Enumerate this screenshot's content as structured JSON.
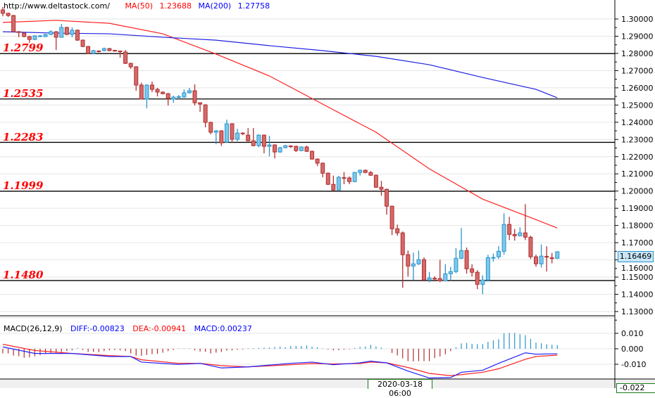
{
  "header": {
    "url": "http://www.deltastock.com/",
    "ma50_label": "MA(50)",
    "ma50_value": "1.23688",
    "ma200_label": "MA(200)",
    "ma200_value": "1.27758"
  },
  "macd_legend": {
    "title": "MACD(26,12,9)",
    "diff": "DIFF:-0.00823",
    "dea": "DEA:-0.00941",
    "macd": "MACD:0.00237"
  },
  "levels": [
    "1.2799",
    "1.2535",
    "1.2283",
    "1.1999",
    "1.1480"
  ],
  "current_price": "1.16469",
  "crosshair_time": "2020-03-18 06:00",
  "macd_axis_bottom_value": "-0.022",
  "colors": {
    "bull_fill": "#7ec8ea",
    "bull_stroke": "#2a95cc",
    "bear_fill": "#d46a6a",
    "bear_stroke": "#b03030",
    "ma50": "#ff2020",
    "ma200": "#2020e0",
    "level_label": "#ff0000",
    "diff": "#2020ff",
    "dea": "#ff2020"
  },
  "chart_data": [
    {
      "type": "candlestick",
      "ylim": [
        1.125,
        1.311
      ],
      "yticks": [
        "1.30000",
        "1.29000",
        "1.28000",
        "1.27000",
        "1.26000",
        "1.25000",
        "1.24000",
        "1.23000",
        "1.22000",
        "1.21000",
        "1.20000",
        "1.19000",
        "1.18000",
        "1.17000",
        "1.16000",
        "1.15000",
        "1.14000",
        "1.13000"
      ],
      "grid": true,
      "ohlc": [
        [
          1.3053,
          1.307,
          1.3016,
          1.3033
        ],
        [
          1.3033,
          1.3037,
          1.3012,
          1.302
        ],
        [
          1.302,
          1.3024,
          1.2922,
          1.2926
        ],
        [
          1.2926,
          1.293,
          1.2894,
          1.2922
        ],
        [
          1.2918,
          1.2922,
          1.2894,
          1.2898
        ],
        [
          1.2898,
          1.2902,
          1.2861,
          1.2881
        ],
        [
          1.2881,
          1.2906,
          1.2877,
          1.2902
        ],
        [
          1.2898,
          1.2906,
          1.2894,
          1.2902
        ],
        [
          1.2898,
          1.2914,
          1.2894,
          1.291
        ],
        [
          1.291,
          1.2935,
          1.2906,
          1.2926
        ],
        [
          1.2926,
          1.293,
          1.282,
          1.2894
        ],
        [
          1.2894,
          1.2971,
          1.289,
          1.2951
        ],
        [
          1.2951,
          1.2955,
          1.2906,
          1.291
        ],
        [
          1.291,
          1.2951,
          1.2894,
          1.2935
        ],
        [
          1.2935,
          1.2939,
          1.2873,
          1.2877
        ],
        [
          1.2877,
          1.2881,
          1.2836,
          1.284
        ],
        [
          1.284,
          1.2844,
          1.2796,
          1.28
        ],
        [
          1.28,
          1.282,
          1.2796,
          1.2816
        ],
        [
          1.2814,
          1.2818,
          1.2806,
          1.281
        ],
        [
          1.2816,
          1.2834,
          1.2812,
          1.2828
        ],
        [
          1.2828,
          1.2832,
          1.2812,
          1.2816
        ],
        [
          1.2818,
          1.282,
          1.281,
          1.2814
        ],
        [
          1.2814,
          1.2816,
          1.2775,
          1.281
        ],
        [
          1.2808,
          1.282,
          1.2738,
          1.2742
        ],
        [
          1.2742,
          1.2746,
          1.271,
          1.2722
        ],
        [
          1.2722,
          1.2726,
          1.2583,
          1.2616
        ],
        [
          1.2616,
          1.263,
          1.2534,
          1.2534
        ],
        [
          1.2534,
          1.262,
          1.2481,
          1.2616
        ],
        [
          1.2616,
          1.2636,
          1.2575,
          1.2591
        ],
        [
          1.2591,
          1.26,
          1.255,
          1.2575
        ],
        [
          1.2575,
          1.2579,
          1.2562,
          1.2566
        ],
        [
          1.2566,
          1.257,
          1.2497,
          1.2538
        ],
        [
          1.2534,
          1.2554,
          1.2513,
          1.2546
        ],
        [
          1.2546,
          1.2558,
          1.2534,
          1.2548
        ],
        [
          1.2546,
          1.2591,
          1.2542,
          1.2571
        ],
        [
          1.2571,
          1.26,
          1.2567,
          1.2583
        ],
        [
          1.2583,
          1.262,
          1.2497,
          1.2513
        ],
        [
          1.2513,
          1.2517,
          1.246,
          1.2505
        ],
        [
          1.2501,
          1.2505,
          1.237,
          1.2399
        ],
        [
          1.2399,
          1.2403,
          1.233,
          1.2342
        ],
        [
          1.2342,
          1.2354,
          1.2272,
          1.235
        ],
        [
          1.235,
          1.2354,
          1.2262,
          1.228
        ],
        [
          1.2284,
          1.2415,
          1.228,
          1.2391
        ],
        [
          1.2391,
          1.2395,
          1.228,
          1.2301
        ],
        [
          1.2301,
          1.2362,
          1.229,
          1.2337
        ],
        [
          1.2337,
          1.2341,
          1.2325,
          1.2335
        ],
        [
          1.2325,
          1.2366,
          1.2288,
          1.2292
        ],
        [
          1.2292,
          1.2366,
          1.226,
          1.2264
        ],
        [
          1.2264,
          1.233,
          1.2255,
          1.2325
        ],
        [
          1.2325,
          1.2329,
          1.2219,
          1.226
        ],
        [
          1.226,
          1.2321,
          1.2202,
          1.2268
        ],
        [
          1.2268,
          1.2272,
          1.219,
          1.2227
        ],
        [
          1.2227,
          1.2256,
          1.2223,
          1.2252
        ],
        [
          1.2252,
          1.2268,
          1.2248,
          1.2264
        ],
        [
          1.2262,
          1.2266,
          1.225,
          1.2258
        ],
        [
          1.226,
          1.2264,
          1.2227,
          1.2235
        ],
        [
          1.2235,
          1.226,
          1.2231,
          1.2256
        ],
        [
          1.2256,
          1.2264,
          1.2227,
          1.2231
        ],
        [
          1.2231,
          1.2235,
          1.2182,
          1.2186
        ],
        [
          1.2186,
          1.219,
          1.2145,
          1.2162
        ],
        [
          1.2162,
          1.2166,
          1.208,
          1.2104
        ],
        [
          1.2104,
          1.2108,
          1.2035,
          1.2039
        ],
        [
          1.2039,
          1.209,
          1.2,
          1.2006
        ],
        [
          1.2006,
          1.2088,
          1.2,
          1.208
        ],
        [
          1.2078,
          1.211,
          1.204,
          1.2074
        ],
        [
          1.2076,
          1.2085,
          1.204,
          1.2055
        ],
        [
          1.2055,
          1.2112,
          1.2051,
          1.2108
        ],
        [
          1.2108,
          1.2125,
          1.209,
          1.2121
        ],
        [
          1.2121,
          1.2125,
          1.2104,
          1.2108
        ],
        [
          1.2108,
          1.2116,
          1.2088,
          1.2092
        ],
        [
          1.2092,
          1.2096,
          1.2018,
          1.2022
        ],
        [
          1.2022,
          1.2059,
          1.1973,
          1.201
        ],
        [
          1.201,
          1.2014,
          1.1863,
          1.1912
        ],
        [
          1.1912,
          1.1916,
          1.1744,
          1.1781
        ],
        [
          1.1781,
          1.1805,
          1.174,
          1.1757
        ],
        [
          1.1757,
          1.1765,
          1.1438,
          1.163
        ],
        [
          1.163,
          1.1654,
          1.1503,
          1.1564
        ],
        [
          1.1564,
          1.1642,
          1.1483,
          1.1577
        ],
        [
          1.1577,
          1.1654,
          1.157,
          1.1601
        ],
        [
          1.1601,
          1.1615,
          1.1475,
          1.1483
        ],
        [
          1.1483,
          1.153,
          1.147,
          1.1495
        ],
        [
          1.1493,
          1.1505,
          1.1475,
          1.1489
        ],
        [
          1.1491,
          1.1601,
          1.147,
          1.1479
        ],
        [
          1.1479,
          1.1575,
          1.1475,
          1.1519
        ],
        [
          1.1519,
          1.156,
          1.148,
          1.1532
        ],
        [
          1.1532,
          1.1668,
          1.1523,
          1.1609
        ],
        [
          1.1609,
          1.1785,
          1.1605,
          1.1654
        ],
        [
          1.1654,
          1.1672,
          1.152,
          1.1548
        ],
        [
          1.1548,
          1.1575,
          1.1503,
          1.1528
        ],
        [
          1.1528,
          1.154,
          1.143,
          1.1458
        ],
        [
          1.1458,
          1.151,
          1.1401,
          1.1483
        ],
        [
          1.1483,
          1.163,
          1.1475,
          1.1613
        ],
        [
          1.1612,
          1.1636,
          1.159,
          1.1614
        ],
        [
          1.1618,
          1.168,
          1.1605,
          1.165
        ],
        [
          1.165,
          1.187,
          1.163,
          1.1806
        ],
        [
          1.1806,
          1.185,
          1.1715,
          1.1748
        ],
        [
          1.1748,
          1.178,
          1.1712,
          1.174
        ],
        [
          1.174,
          1.179,
          1.1736,
          1.1757
        ],
        [
          1.1757,
          1.1924,
          1.1715,
          1.1732
        ],
        [
          1.1732,
          1.174,
          1.1605,
          1.1618
        ],
        [
          1.1618,
          1.163,
          1.156,
          1.1577
        ],
        [
          1.1577,
          1.169,
          1.1555,
          1.1622
        ],
        [
          1.162,
          1.1679,
          1.1533,
          1.1616
        ],
        [
          1.1612,
          1.164,
          1.158,
          1.1608
        ],
        [
          1.1609,
          1.1651,
          1.1605,
          1.1647
        ]
      ],
      "ma50": [
        [
          1,
          1.298
        ],
        [
          11,
          1.2992
        ],
        [
          21,
          1.2975
        ],
        [
          31,
          1.2914
        ],
        [
          41,
          1.2796
        ],
        [
          51,
          1.2669
        ],
        [
          61,
          1.2505
        ],
        [
          71,
          1.2342
        ],
        [
          81,
          1.2129
        ],
        [
          91,
          1.1953
        ],
        [
          101,
          1.1834
        ],
        [
          105,
          1.1785
        ]
      ],
      "ma200": [
        [
          1,
          1.2926
        ],
        [
          11,
          1.2918
        ],
        [
          21,
          1.2914
        ],
        [
          31,
          1.2894
        ],
        [
          41,
          1.2877
        ],
        [
          51,
          1.2845
        ],
        [
          61,
          1.2816
        ],
        [
          71,
          1.2783
        ],
        [
          81,
          1.2734
        ],
        [
          91,
          1.266
        ],
        [
          101,
          1.2591
        ],
        [
          105,
          1.2542
        ]
      ],
      "levels": [
        1.2799,
        1.2535,
        1.2283,
        1.1999,
        1.148
      ]
    },
    {
      "type": "macd",
      "ylim": [
        -0.0195,
        0.016
      ],
      "yticks": [
        "0.010",
        "0.000",
        "-0.010"
      ],
      "histogram": [
        -0.003,
        -0.003,
        -0.0044,
        -0.0048,
        -0.0058,
        -0.0056,
        -0.0048,
        -0.0041,
        -0.0033,
        -0.003,
        -0.0026,
        -0.002,
        -0.0015,
        -0.001,
        0.0005,
        -0.0008,
        -0.002,
        -0.002,
        -0.0022,
        -0.0015,
        -0.001,
        -0.0008,
        -0.001,
        -0.0015,
        -0.003,
        -0.0045,
        -0.0045,
        -0.004,
        -0.0035,
        -0.0033,
        -0.0025,
        -0.0015,
        -0.0008,
        0.0003,
        0.0002,
        0.0003,
        -0.001,
        -0.0018,
        -0.002,
        -0.003,
        -0.0025,
        -0.002,
        -0.0012,
        -0.001,
        -0.0006,
        -0.0004,
        0.0003,
        0.0004,
        0.0005,
        0.0007,
        0.0008,
        0.0012,
        0.0015,
        0.001,
        0.0018,
        0.0018,
        0.0018,
        0.0022,
        0.0014,
        0.001,
        0.0003,
        -0.0005,
        -0.001,
        -0.0009,
        -0.0005,
        -0.0003,
        0.0005,
        0.0012,
        0.0015,
        0.0025,
        0.0015,
        0.0008,
        0.0,
        -0.0027,
        -0.0043,
        -0.0062,
        -0.008,
        -0.0082,
        -0.008,
        -0.008,
        -0.008,
        -0.006,
        -0.005,
        -0.0035,
        -0.0015,
        0.001,
        0.0035,
        0.0038,
        0.0032,
        0.003,
        0.003,
        0.0045,
        0.0055,
        0.0062,
        0.01,
        0.0103,
        0.0103,
        0.0095,
        0.0088,
        0.0065,
        0.004,
        0.0035,
        0.003,
        0.0026,
        0.0024
      ],
      "diff": [
        [
          1,
          0.0012
        ],
        [
          7,
          -0.003
        ],
        [
          14,
          -0.003
        ],
        [
          21,
          -0.005
        ],
        [
          25,
          -0.005
        ],
        [
          27,
          -0.0086
        ],
        [
          34,
          -0.0101
        ],
        [
          38,
          -0.0094
        ],
        [
          42,
          -0.0124
        ],
        [
          47,
          -0.0117
        ],
        [
          55,
          -0.0094
        ],
        [
          59,
          -0.0086
        ],
        [
          63,
          -0.0103
        ],
        [
          68,
          -0.0091
        ],
        [
          70,
          -0.008
        ],
        [
          73,
          -0.0091
        ],
        [
          77,
          -0.0144
        ],
        [
          81,
          -0.0189
        ],
        [
          85,
          -0.0186
        ],
        [
          87,
          -0.0152
        ],
        [
          91,
          -0.0139
        ],
        [
          94,
          -0.0094
        ],
        [
          99,
          -0.0026
        ],
        [
          101,
          -0.0035
        ],
        [
          105,
          -0.0032
        ]
      ],
      "dea": [
        [
          1,
          0.0029
        ],
        [
          7,
          -0.0011
        ],
        [
          14,
          -0.003
        ],
        [
          21,
          -0.0044
        ],
        [
          25,
          -0.005
        ],
        [
          27,
          -0.0071
        ],
        [
          34,
          -0.0094
        ],
        [
          38,
          -0.0094
        ],
        [
          42,
          -0.0109
        ],
        [
          47,
          -0.0117
        ],
        [
          55,
          -0.0103
        ],
        [
          59,
          -0.0095
        ],
        [
          63,
          -0.0098
        ],
        [
          68,
          -0.0095
        ],
        [
          70,
          -0.0086
        ],
        [
          73,
          -0.0091
        ],
        [
          77,
          -0.0121
        ],
        [
          81,
          -0.0159
        ],
        [
          85,
          -0.0174
        ],
        [
          87,
          -0.0167
        ],
        [
          91,
          -0.0152
        ],
        [
          94,
          -0.0129
        ],
        [
          99,
          -0.0068
        ],
        [
          101,
          -0.005
        ],
        [
          105,
          -0.0041
        ]
      ]
    }
  ]
}
